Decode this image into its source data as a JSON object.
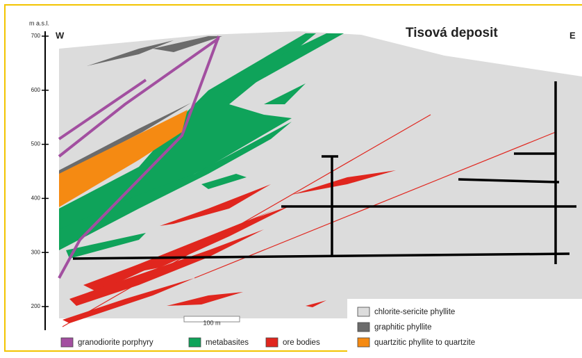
{
  "title": "Tisová deposit",
  "west": "W",
  "east": "E",
  "axis": {
    "label": "m a.s.l.",
    "ticks": [
      700,
      600,
      500,
      400,
      300,
      200
    ]
  },
  "scale_bar": "100 m",
  "legend": [
    {
      "label": "granodiorite porphyry",
      "color": "#a24fa0"
    },
    {
      "label": "metabasites",
      "color": "#0fa35a"
    },
    {
      "label": "ore bodies",
      "color": "#e0261e"
    },
    {
      "label": "chlorite-sericite phyllite",
      "color": "#dcdcdc"
    },
    {
      "label": "graphitic phyllite",
      "color": "#6b6b6b"
    },
    {
      "label": "quartzitic phyllite to quartzite",
      "color": "#f58a12"
    }
  ]
}
